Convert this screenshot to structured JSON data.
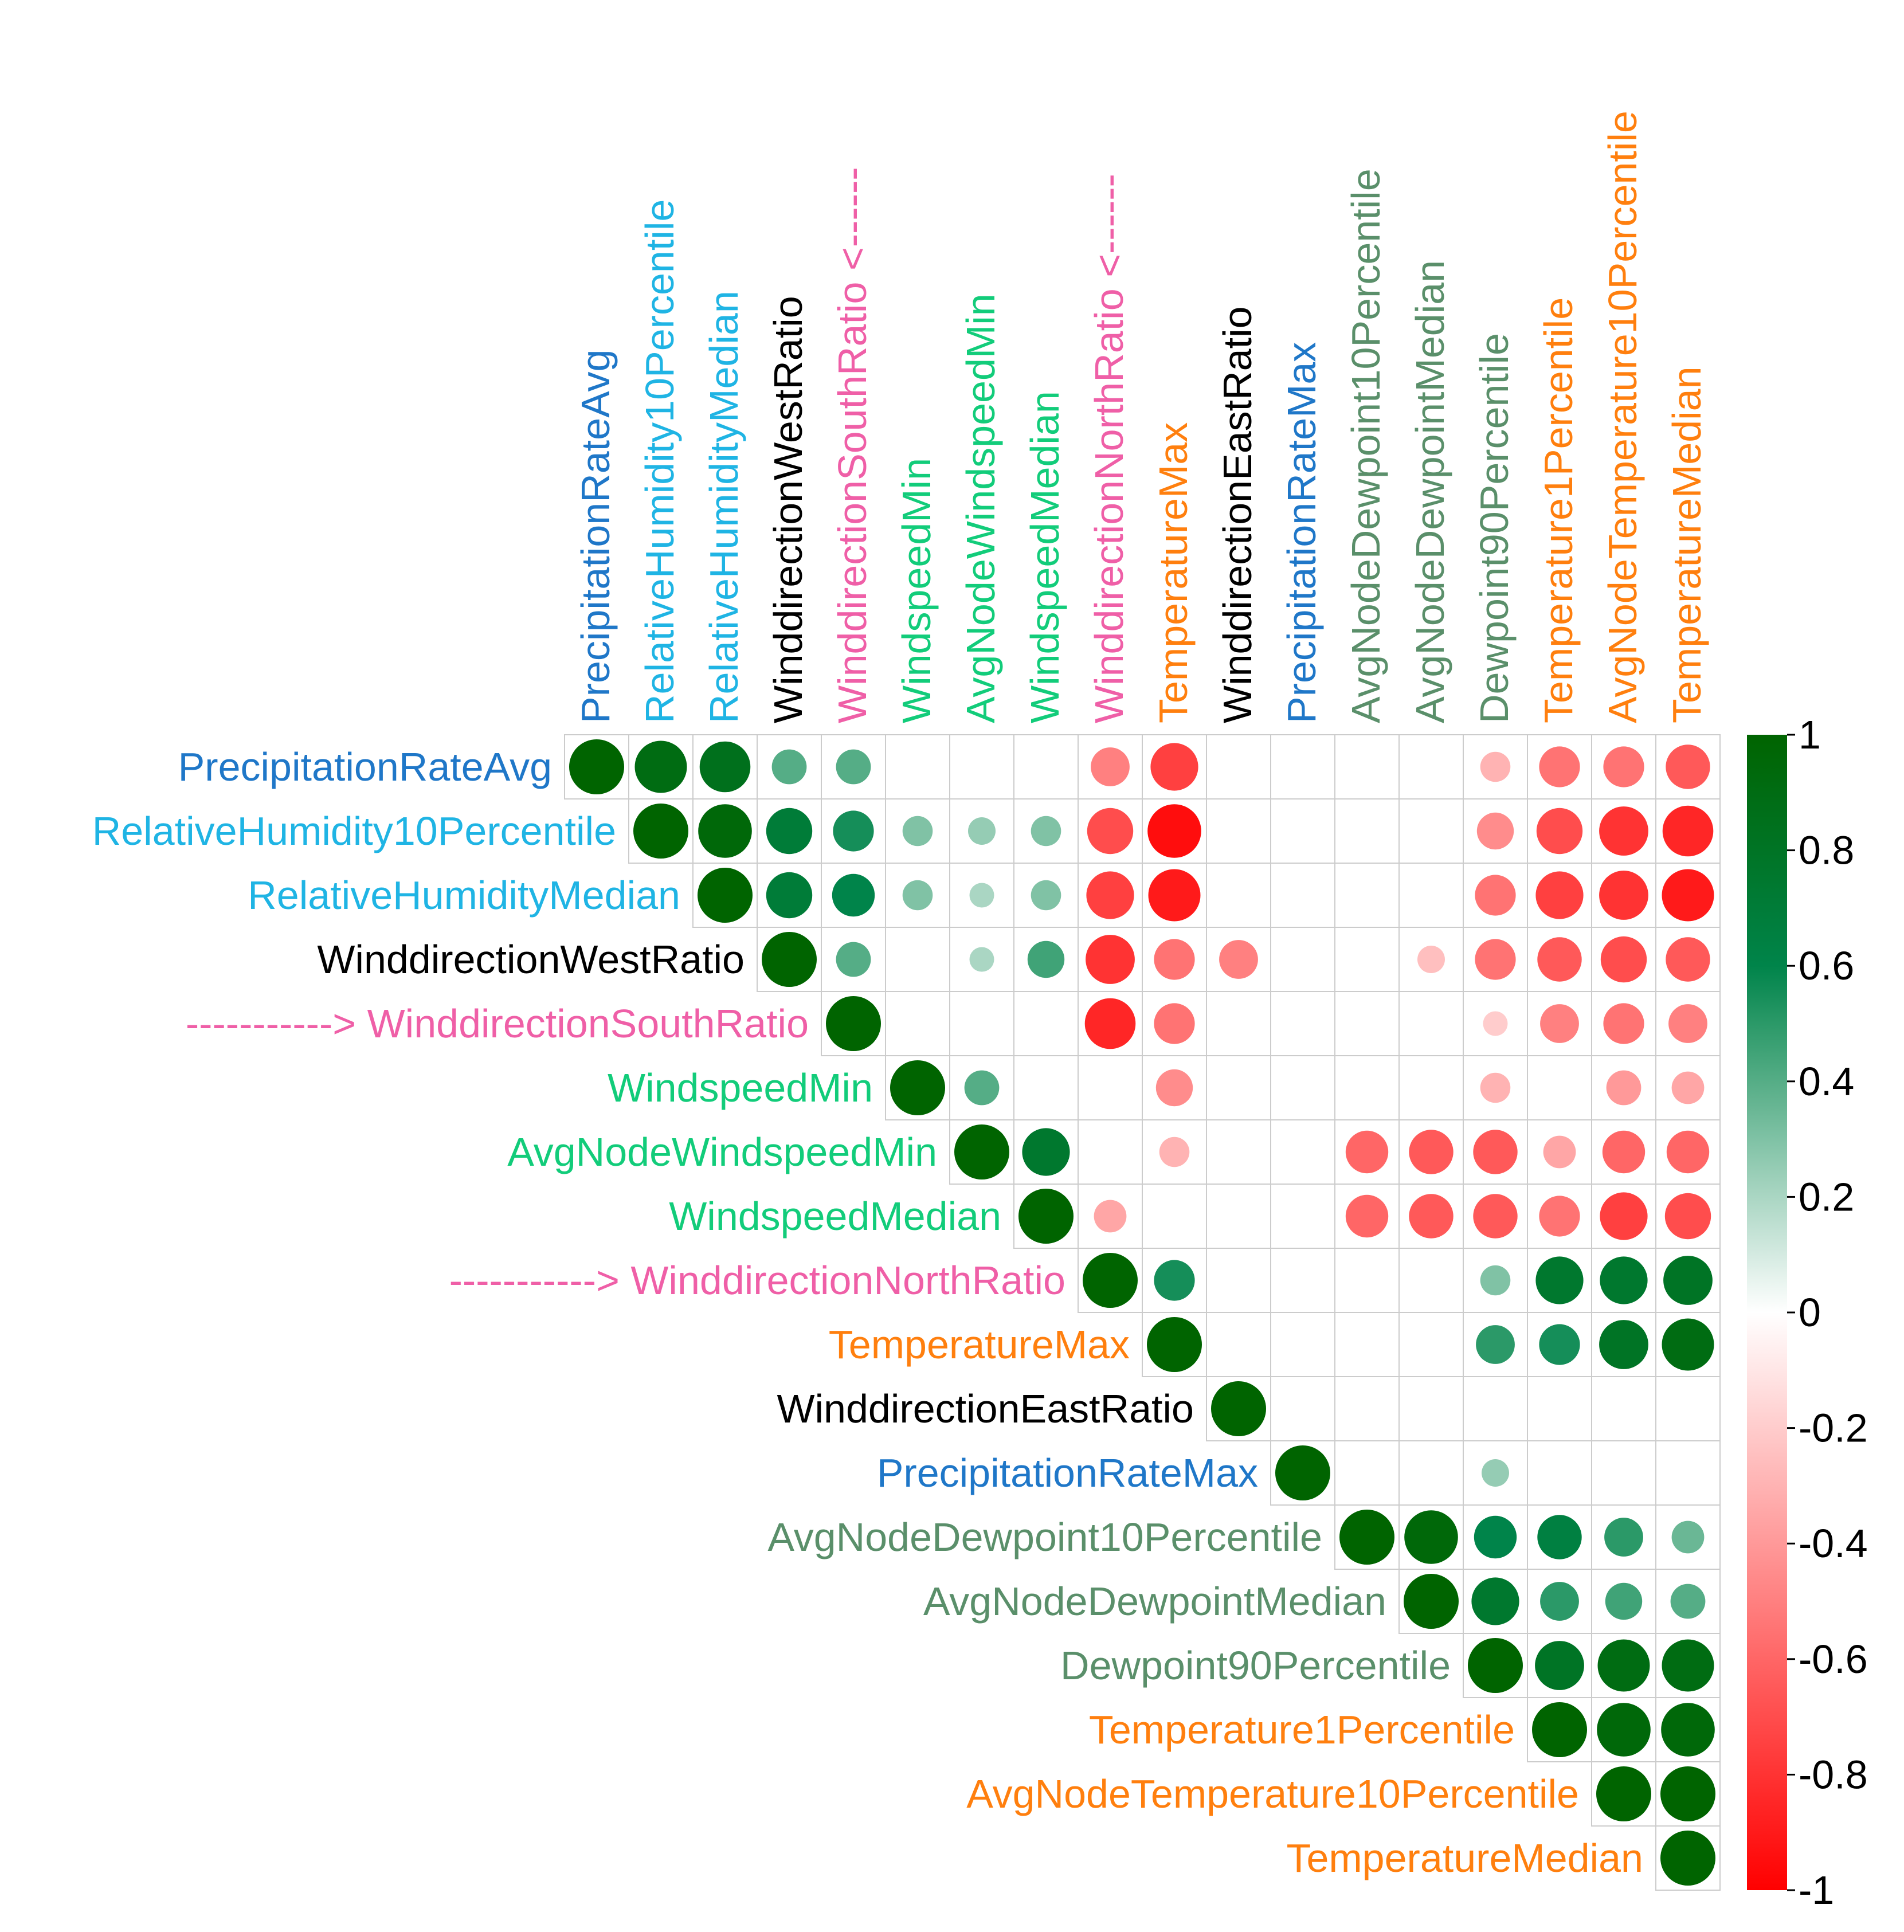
{
  "chart_data": {
    "type": "heatmap",
    "subtype": "correlation-upper-triangle-circles",
    "variables": [
      {
        "name": "PrecipitationRateAvg",
        "color": "#1f77c8"
      },
      {
        "name": "RelativeHumidity10Percentile",
        "color": "#1fb4e4"
      },
      {
        "name": "RelativeHumidityMedian",
        "color": "#1fb4e4"
      },
      {
        "name": "WinddirectionWestRatio",
        "color": "#000000"
      },
      {
        "name": "WinddirectionSouthRatio",
        "color": "#ef5fa7",
        "row_prefix": "-----------> ",
        "col_suffix": " <------"
      },
      {
        "name": "WindspeedMin",
        "color": "#12cc7a"
      },
      {
        "name": "AvgNodeWindspeedMin",
        "color": "#12cc7a"
      },
      {
        "name": "WindspeedMedian",
        "color": "#12cc7a"
      },
      {
        "name": "WinddirectionNorthRatio",
        "color": "#ef5fa7",
        "row_prefix": "-----------> ",
        "col_suffix": " <------"
      },
      {
        "name": "TemperatureMax",
        "color": "#ff7f0e"
      },
      {
        "name": "WinddirectionEastRatio",
        "color": "#000000"
      },
      {
        "name": "PrecipitationRateMax",
        "color": "#1f77c8"
      },
      {
        "name": "AvgNodeDewpoint10Percentile",
        "color": "#5a8f6a"
      },
      {
        "name": "AvgNodeDewpointMedian",
        "color": "#5a8f6a"
      },
      {
        "name": "Dewpoint90Percentile",
        "color": "#5a8f6a"
      },
      {
        "name": "Temperature1Percentile",
        "color": "#ff7f0e"
      },
      {
        "name": "AvgNodeTemperature10Percentile",
        "color": "#ff7f0e"
      },
      {
        "name": "TemperatureMedian",
        "color": "#ff7f0e"
      }
    ],
    "matrix_upper": [
      [
        1,
        0.9,
        0.85,
        0.4,
        0.4,
        null,
        null,
        null,
        -0.5,
        -0.75,
        null,
        null,
        null,
        null,
        -0.3,
        -0.55,
        -0.55,
        -0.65
      ],
      [
        1,
        0.95,
        0.7,
        0.55,
        0.3,
        0.25,
        0.3,
        -0.7,
        -0.95,
        null,
        null,
        null,
        null,
        -0.45,
        -0.7,
        -0.8,
        -0.85
      ],
      [
        1,
        0.7,
        0.6,
        0.3,
        0.2,
        0.3,
        -0.75,
        -0.9,
        null,
        null,
        null,
        null,
        -0.55,
        -0.75,
        -0.8,
        -0.9
      ],
      [
        1,
        0.4,
        null,
        0.2,
        0.45,
        -0.8,
        -0.55,
        -0.5,
        null,
        null,
        -0.25,
        -0.55,
        -0.65,
        -0.7,
        -0.65
      ],
      [
        1,
        null,
        null,
        null,
        -0.85,
        -0.55,
        null,
        null,
        null,
        null,
        -0.2,
        -0.5,
        -0.55,
        -0.5
      ],
      [
        1,
        0.4,
        null,
        null,
        -0.45,
        null,
        null,
        null,
        null,
        -0.3,
        null,
        -0.4,
        -0.35
      ],
      [
        1,
        0.75,
        null,
        -0.3,
        null,
        null,
        -0.6,
        -0.65,
        -0.65,
        -0.35,
        -0.6,
        -0.6
      ],
      [
        1,
        -0.35,
        null,
        null,
        null,
        -0.6,
        -0.65,
        -0.65,
        -0.55,
        -0.75,
        -0.7
      ],
      [
        1,
        0.55,
        null,
        null,
        null,
        null,
        0.3,
        0.75,
        0.75,
        0.8
      ],
      [
        1,
        null,
        null,
        null,
        null,
        0.5,
        0.55,
        0.8,
        0.9
      ],
      [
        1,
        null,
        null,
        null,
        null,
        null,
        null,
        null
      ],
      [
        1,
        null,
        null,
        0.25,
        null,
        null,
        null
      ],
      [
        1,
        0.95,
        0.6,
        0.65,
        0.5,
        0.35
      ],
      [
        1,
        0.75,
        0.5,
        0.45,
        0.4
      ],
      [
        1,
        0.8,
        0.9,
        0.9
      ],
      [
        1,
        0.95,
        0.95
      ],
      [
        1,
        1
      ],
      [
        1
      ]
    ],
    "colorbar": {
      "range": [
        -1,
        1
      ],
      "ticks": [
        "1",
        "0.8",
        "0.6",
        "0.4",
        "0.2",
        "0",
        "-0.2",
        "-0.4",
        "-0.6",
        "-0.8",
        "-1"
      ],
      "colors": {
        "negative": "#ff0000",
        "zero": "#ffffff",
        "mid_positive": "#00844a",
        "positive": "#006400"
      }
    },
    "title": "",
    "xlabel": "",
    "ylabel": ""
  }
}
